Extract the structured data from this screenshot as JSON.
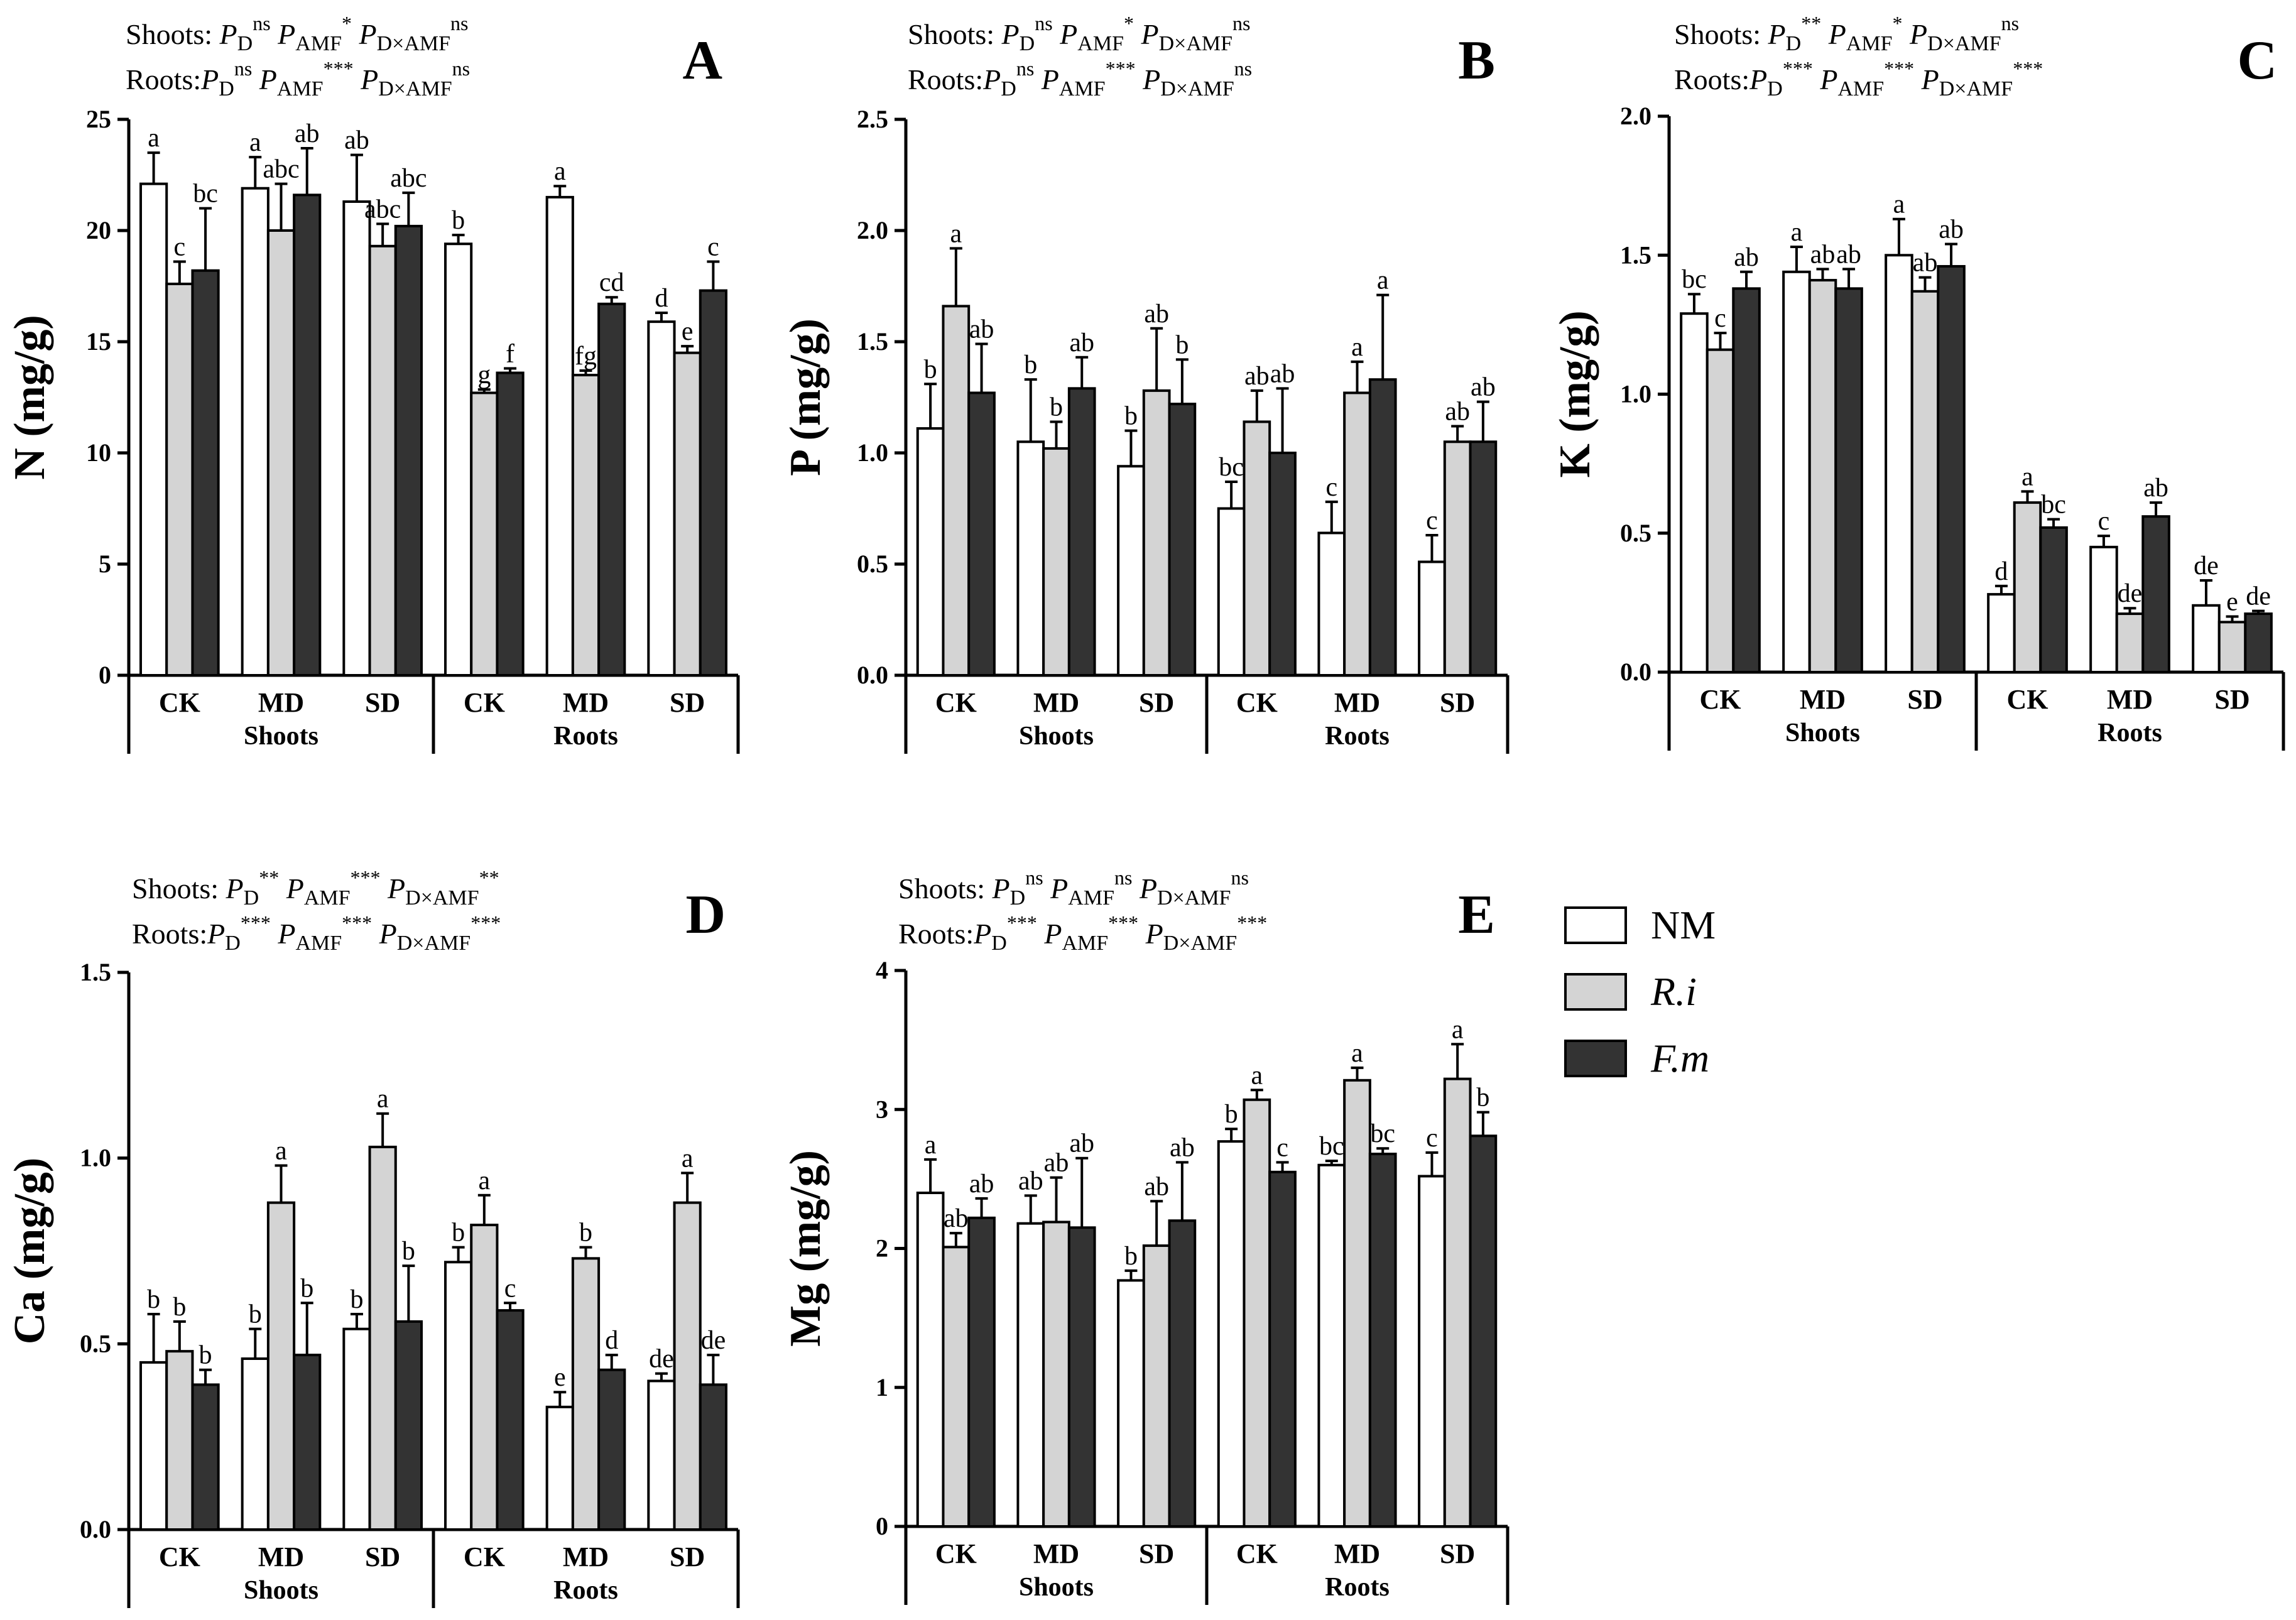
{
  "colors": {
    "NM": "#ffffff",
    "Ri": "#d4d4d4",
    "Fm": "#333333",
    "axis": "#000000"
  },
  "legend": [
    {
      "label": "NM",
      "italic": false,
      "color": "#ffffff"
    },
    {
      "label": "R.i",
      "italic": true,
      "color": "#d4d4d4"
    },
    {
      "label": "F.m",
      "italic": true,
      "color": "#333333"
    }
  ],
  "shared": {
    "stat_shoots_label": "Shoots:",
    "stat_roots_label": "Roots:",
    "P": "P",
    "sub_D": "D",
    "sub_AMF": "AMF",
    "sub_DxAMF": "D×AMF",
    "categories": [
      "CK",
      "MD",
      "SD",
      "CK",
      "MD",
      "SD"
    ],
    "groups": [
      "Shoots",
      "Roots"
    ]
  },
  "chart_data": [
    {
      "type": "bar",
      "panel": "A",
      "ylabel": "N  (mg/g)",
      "ylim": [
        0,
        25
      ],
      "yticks": [
        "0",
        "5",
        "10",
        "15",
        "20",
        "25"
      ],
      "categories": [
        "CK",
        "MD",
        "SD",
        "CK",
        "MD",
        "SD"
      ],
      "groups": [
        "Shoots",
        "Roots"
      ],
      "stats": {
        "shoots": [
          "ns",
          "*",
          "ns"
        ],
        "roots": [
          "ns",
          "***",
          "ns"
        ]
      },
      "series": [
        {
          "name": "NM",
          "values": [
            22.1,
            21.9,
            21.3,
            19.4,
            21.5,
            15.9
          ],
          "errors": [
            1.4,
            1.4,
            2.1,
            0.4,
            0.5,
            0.4
          ],
          "letters": [
            "a",
            "a",
            "ab",
            "b",
            "a",
            "d"
          ]
        },
        {
          "name": "R.i",
          "values": [
            17.6,
            20.0,
            19.3,
            12.7,
            13.5,
            14.5
          ],
          "errors": [
            1.0,
            2.1,
            1.0,
            0.15,
            0.2,
            0.3
          ],
          "letters": [
            "c",
            "abc",
            "abc",
            "g",
            "fg",
            "e"
          ]
        },
        {
          "name": "F.m",
          "values": [
            18.2,
            21.6,
            20.2,
            13.6,
            16.7,
            17.3
          ],
          "errors": [
            2.8,
            2.1,
            1.5,
            0.2,
            0.3,
            1.3
          ],
          "letters": [
            "bc",
            "ab",
            "abc",
            "f",
            "cd",
            "c"
          ]
        }
      ]
    },
    {
      "type": "bar",
      "panel": "B",
      "ylabel": "P  (mg/g)",
      "ylim": [
        0,
        2.5
      ],
      "yticks": [
        "0.0",
        "0.5",
        "1.0",
        "1.5",
        "2.0",
        "2.5"
      ],
      "categories": [
        "CK",
        "MD",
        "SD",
        "CK",
        "MD",
        "SD"
      ],
      "groups": [
        "Shoots",
        "Roots"
      ],
      "stats": {
        "shoots": [
          "ns",
          "*",
          "ns"
        ],
        "roots": [
          "ns",
          "***",
          "ns"
        ]
      },
      "series": [
        {
          "name": "NM",
          "values": [
            1.11,
            1.05,
            0.94,
            0.75,
            0.64,
            0.51
          ],
          "errors": [
            0.2,
            0.28,
            0.16,
            0.12,
            0.14,
            0.12
          ],
          "letters": [
            "b",
            "b",
            "b",
            "bc",
            "c",
            "c"
          ]
        },
        {
          "name": "R.i",
          "values": [
            1.66,
            1.02,
            1.28,
            1.14,
            1.27,
            1.05
          ],
          "errors": [
            0.26,
            0.12,
            0.28,
            0.14,
            0.14,
            0.07
          ],
          "letters": [
            "a",
            "b",
            "ab",
            "ab",
            "a",
            "ab"
          ]
        },
        {
          "name": "F.m",
          "values": [
            1.27,
            1.29,
            1.22,
            1.0,
            1.33,
            1.05
          ],
          "errors": [
            0.22,
            0.14,
            0.2,
            0.29,
            0.38,
            0.18
          ],
          "letters": [
            "ab",
            "ab",
            "b",
            "ab",
            "a",
            "ab"
          ]
        }
      ]
    },
    {
      "type": "bar",
      "panel": "C",
      "ylabel": "K  (mg/g)",
      "ylim": [
        0,
        2.0
      ],
      "yticks": [
        "0.0",
        "0.5",
        "1.0",
        "1.5",
        "2.0"
      ],
      "categories": [
        "CK",
        "MD",
        "SD",
        "CK",
        "MD",
        "SD"
      ],
      "groups": [
        "Shoots",
        "Roots"
      ],
      "stats": {
        "shoots": [
          "**",
          "*",
          "ns"
        ],
        "roots": [
          "***",
          "***",
          "***"
        ]
      },
      "series": [
        {
          "name": "NM",
          "values": [
            1.29,
            1.44,
            1.5,
            0.28,
            0.45,
            0.24
          ],
          "errors": [
            0.07,
            0.09,
            0.13,
            0.03,
            0.04,
            0.09
          ],
          "letters": [
            "bc",
            "a",
            "a",
            "d",
            "c",
            "de"
          ]
        },
        {
          "name": "R.i",
          "values": [
            1.16,
            1.41,
            1.37,
            0.61,
            0.21,
            0.18
          ],
          "errors": [
            0.06,
            0.04,
            0.05,
            0.04,
            0.02,
            0.02
          ],
          "letters": [
            "c",
            "ab",
            "ab",
            "a",
            "de",
            "e"
          ]
        },
        {
          "name": "F.m",
          "values": [
            1.38,
            1.38,
            1.46,
            0.52,
            0.56,
            0.21
          ],
          "errors": [
            0.06,
            0.07,
            0.08,
            0.03,
            0.05,
            0.01
          ],
          "letters": [
            "ab",
            "ab",
            "ab",
            "bc",
            "ab",
            "de"
          ]
        }
      ]
    },
    {
      "type": "bar",
      "panel": "D",
      "ylabel": "Ca  (mg/g)",
      "ylim": [
        0,
        1.5
      ],
      "yticks": [
        "0.0",
        "0.5",
        "1.0",
        "1.5"
      ],
      "categories": [
        "CK",
        "MD",
        "SD",
        "CK",
        "MD",
        "SD"
      ],
      "groups": [
        "Shoots",
        "Roots"
      ],
      "stats": {
        "shoots": [
          "**",
          "***",
          "**"
        ],
        "roots": [
          "***",
          "***",
          "***"
        ]
      },
      "series": [
        {
          "name": "NM",
          "values": [
            0.45,
            0.46,
            0.54,
            0.72,
            0.33,
            0.4
          ],
          "errors": [
            0.13,
            0.08,
            0.04,
            0.04,
            0.04,
            0.02
          ],
          "letters": [
            "b",
            "b",
            "b",
            "b",
            "e",
            "de"
          ]
        },
        {
          "name": "R.i",
          "values": [
            0.48,
            0.88,
            1.03,
            0.82,
            0.73,
            0.88
          ],
          "errors": [
            0.08,
            0.1,
            0.09,
            0.08,
            0.03,
            0.08
          ],
          "letters": [
            "b",
            "a",
            "a",
            "a",
            "b",
            "a"
          ]
        },
        {
          "name": "F.m",
          "values": [
            0.39,
            0.47,
            0.56,
            0.59,
            0.43,
            0.39
          ],
          "errors": [
            0.04,
            0.14,
            0.15,
            0.02,
            0.04,
            0.08
          ],
          "letters": [
            "b",
            "b",
            "b",
            "c",
            "d",
            "de"
          ]
        }
      ]
    },
    {
      "type": "bar",
      "panel": "E",
      "ylabel": "Mg  (mg/g)",
      "ylim": [
        0,
        4
      ],
      "yticks": [
        "0",
        "1",
        "2",
        "3",
        "4"
      ],
      "categories": [
        "CK",
        "MD",
        "SD",
        "CK",
        "MD",
        "SD"
      ],
      "groups": [
        "Shoots",
        "Roots"
      ],
      "stats": {
        "shoots": [
          "ns",
          "ns",
          "ns"
        ],
        "roots": [
          "***",
          "***",
          "***"
        ]
      },
      "series": [
        {
          "name": "NM",
          "values": [
            2.4,
            2.18,
            1.77,
            2.77,
            2.6,
            2.52
          ],
          "errors": [
            0.24,
            0.2,
            0.07,
            0.09,
            0.03,
            0.17
          ],
          "letters": [
            "a",
            "ab",
            "b",
            "b",
            "bc",
            "c"
          ]
        },
        {
          "name": "R.i",
          "values": [
            2.01,
            2.19,
            2.02,
            3.07,
            3.21,
            3.22
          ],
          "errors": [
            0.1,
            0.32,
            0.32,
            0.07,
            0.09,
            0.25
          ],
          "letters": [
            "ab",
            "ab",
            "ab",
            "a",
            "a",
            "a"
          ]
        },
        {
          "name": "F.m",
          "values": [
            2.22,
            2.15,
            2.2,
            2.55,
            2.68,
            2.81
          ],
          "errors": [
            0.14,
            0.5,
            0.42,
            0.07,
            0.04,
            0.17
          ],
          "letters": [
            "ab",
            "ab",
            "ab",
            "c",
            "bc",
            "b"
          ]
        }
      ]
    }
  ]
}
